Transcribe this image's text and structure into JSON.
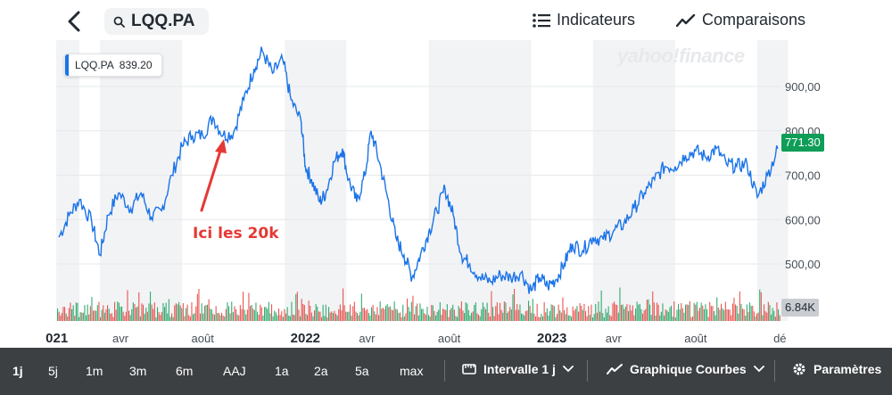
{
  "header": {
    "symbol": "LQQ.PA",
    "indicators_label": "Indicateurs",
    "comparisons_label": "Comparaisons"
  },
  "legend": {
    "symbol": "LQQ.PA",
    "value": "839.20"
  },
  "watermark": "yahoo!finance",
  "current_price_label": "771.30",
  "volume_label": "6.84K",
  "annotation": "Ici les 20k",
  "colors": {
    "line": "#1a73e8",
    "up": "#0f9d58",
    "down": "#e53935",
    "price_tag": "#0f9d58"
  },
  "chart_data": {
    "type": "line",
    "title": "LQQ.PA",
    "ylim": [
      440,
      990
    ],
    "yticks": [
      500,
      600,
      700,
      800,
      900
    ],
    "ytick_labels": [
      "500,00",
      "600,00",
      "700,00",
      "800,00",
      "900,00"
    ],
    "xtick_labels": [
      "021",
      "avr",
      "août",
      "2022",
      "avr",
      "août",
      "2023",
      "avr",
      "août",
      "dé"
    ],
    "xtick_bold": [
      true,
      false,
      false,
      true,
      false,
      false,
      true,
      false,
      false,
      false
    ],
    "month_index_range": [
      0,
      35
    ],
    "xtick_positions_month_index": [
      -0.1,
      3,
      7,
      12,
      15,
      19,
      24,
      27,
      31,
      35.1
    ],
    "series": [
      {
        "name": "LQQ.PA",
        "x_month_index": [
          0,
          0.5,
          1,
          1.6,
          2,
          2.4,
          2.9,
          3.5,
          4,
          4.5,
          5,
          5.5,
          6,
          6.5,
          7,
          7.5,
          8,
          8.5,
          9,
          9.5,
          9.9,
          10.4,
          10.9,
          11.3,
          11.8,
          12,
          12.3,
          12.7,
          13,
          13.4,
          13.8,
          14.1,
          14.5,
          14.9,
          15.2,
          15.6,
          16,
          16.4,
          16.8,
          17.2,
          17.6,
          18,
          18.4,
          18.8,
          19.2,
          19.6,
          20,
          20.5,
          21,
          21.5,
          22,
          22.5,
          23,
          23.4,
          23.8,
          24.2,
          24.6,
          25,
          25.5,
          26,
          26.5,
          27,
          27.5,
          28,
          28.5,
          29,
          29.5,
          30,
          30.5,
          31,
          31.5,
          32,
          32.5,
          33,
          33.5,
          34,
          34.5,
          35
        ],
        "values": [
          560,
          610,
          645,
          595,
          520,
          610,
          660,
          625,
          660,
          605,
          620,
          700,
          765,
          790,
          790,
          830,
          790,
          795,
          870,
          940,
          980,
          930,
          960,
          870,
          820,
          720,
          690,
          640,
          660,
          730,
          760,
          690,
          640,
          700,
          800,
          730,
          650,
          560,
          520,
          470,
          520,
          570,
          620,
          670,
          610,
          520,
          500,
          470,
          460,
          475,
          470,
          480,
          440,
          470,
          450,
          465,
          500,
          545,
          530,
          560,
          555,
          575,
          590,
          625,
          660,
          690,
          720,
          720,
          745,
          755,
          740,
          760,
          725,
          720,
          725,
          650,
          700,
          760
        ]
      }
    ],
    "volume_label": "6.84K"
  },
  "bottombar": {
    "ranges": [
      "1j",
      "5j",
      "1m",
      "3m",
      "6m",
      "AAJ",
      "1a",
      "2a",
      "5a",
      "max"
    ],
    "active_range": "1j",
    "interval_label": "Intervalle 1 j",
    "chart_type_label": "Graphique Courbes",
    "settings_label": "Paramètres"
  }
}
